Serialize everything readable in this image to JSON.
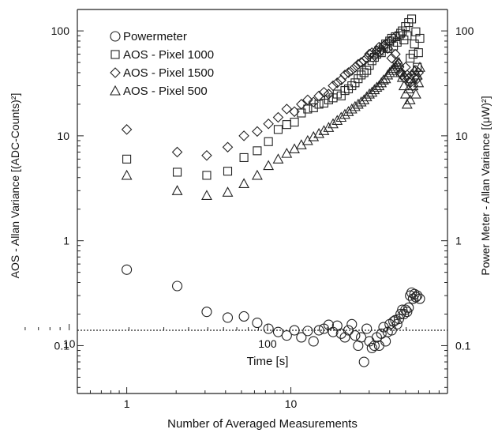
{
  "chart_data": {
    "type": "scatter",
    "title": "",
    "xlabel": "Number of Averaged Measurements",
    "x2label": "Time [s]",
    "ylabel": "AOS - Allan Variance [(ADC-Counts)²]",
    "y2label": "Power Meter - Allan Variance [(μW)²]",
    "xscale": "log",
    "yscale": "log",
    "xlim": [
      0.5,
      90
    ],
    "ylim": [
      0.035,
      160
    ],
    "xticks": [
      "1",
      "10"
    ],
    "x2ticks": [
      "10",
      "100"
    ],
    "yticks": [
      "0.1",
      "1",
      "10",
      "100"
    ],
    "y2ticks": [
      "0.1",
      "1",
      "10",
      "100"
    ],
    "legend_position": "top-left",
    "grid": false,
    "series": [
      {
        "name": "Powermeter",
        "marker": "circle",
        "points": [
          [
            1,
            0.53
          ],
          [
            2,
            0.37
          ],
          [
            3,
            0.21
          ],
          [
            4,
            0.185
          ],
          [
            5,
            0.19
          ],
          [
            6,
            0.165
          ],
          [
            7,
            0.145
          ],
          [
            8,
            0.135
          ],
          [
            9,
            0.125
          ],
          [
            10,
            0.14
          ],
          [
            11,
            0.12
          ],
          [
            12,
            0.138
          ],
          [
            13,
            0.11
          ],
          [
            14,
            0.14
          ],
          [
            15,
            0.145
          ],
          [
            16,
            0.158
          ],
          [
            17,
            0.135
          ],
          [
            18,
            0.155
          ],
          [
            19,
            0.13
          ],
          [
            20,
            0.12
          ],
          [
            21,
            0.14
          ],
          [
            22,
            0.16
          ],
          [
            23,
            0.125
          ],
          [
            24,
            0.1
          ],
          [
            25,
            0.12
          ],
          [
            26,
            0.07
          ],
          [
            27,
            0.145
          ],
          [
            28,
            0.11
          ],
          [
            29,
            0.095
          ],
          [
            30,
            0.1
          ],
          [
            31,
            0.12
          ],
          [
            32,
            0.1
          ],
          [
            33,
            0.13
          ],
          [
            34,
            0.15
          ],
          [
            35,
            0.11
          ],
          [
            36,
            0.135
          ],
          [
            37,
            0.16
          ],
          [
            38,
            0.14
          ],
          [
            39,
            0.17
          ],
          [
            40,
            0.175
          ],
          [
            41,
            0.16
          ],
          [
            42,
            0.18
          ],
          [
            43,
            0.2
          ],
          [
            44,
            0.22
          ],
          [
            45,
            0.2
          ],
          [
            46,
            0.22
          ],
          [
            47,
            0.21
          ],
          [
            48,
            0.23
          ],
          [
            49,
            0.3
          ],
          [
            50,
            0.32
          ],
          [
            51,
            0.28
          ],
          [
            52,
            0.31
          ],
          [
            53,
            0.29
          ],
          [
            54,
            0.3
          ],
          [
            56,
            0.28
          ]
        ]
      },
      {
        "name": "AOS - Pixel 1000",
        "marker": "square",
        "points": [
          [
            1,
            6.0
          ],
          [
            2,
            4.5
          ],
          [
            3,
            4.2
          ],
          [
            4,
            4.6
          ],
          [
            5,
            6.2
          ],
          [
            6,
            7.2
          ],
          [
            7,
            8.8
          ],
          [
            8,
            11.5
          ],
          [
            9,
            12.8
          ],
          [
            10,
            13.5
          ],
          [
            11,
            16.5
          ],
          [
            12,
            18
          ],
          [
            13,
            18.5
          ],
          [
            14,
            20
          ],
          [
            15,
            20.5
          ],
          [
            16,
            22
          ],
          [
            17,
            23
          ],
          [
            18,
            25
          ],
          [
            19,
            24
          ],
          [
            20,
            27
          ],
          [
            21,
            28
          ],
          [
            22,
            30
          ],
          [
            23,
            32
          ],
          [
            24,
            35
          ],
          [
            25,
            38
          ],
          [
            26,
            40
          ],
          [
            27,
            42
          ],
          [
            28,
            47
          ],
          [
            29,
            52
          ],
          [
            30,
            56
          ],
          [
            31,
            60
          ],
          [
            32,
            64
          ],
          [
            33,
            62
          ],
          [
            34,
            70
          ],
          [
            35,
            75
          ],
          [
            36,
            68
          ],
          [
            37,
            80
          ],
          [
            38,
            85
          ],
          [
            39,
            72
          ],
          [
            40,
            88
          ],
          [
            41,
            78
          ],
          [
            42,
            90
          ],
          [
            43,
            95
          ],
          [
            44,
            100
          ],
          [
            45,
            82
          ],
          [
            46,
            110
          ],
          [
            47,
            90
          ],
          [
            48,
            120
          ],
          [
            49,
            55
          ],
          [
            50,
            130
          ],
          [
            51,
            60
          ],
          [
            52,
            75
          ],
          [
            53,
            98
          ],
          [
            54,
            45
          ],
          [
            55,
            62
          ],
          [
            56,
            85
          ]
        ]
      },
      {
        "name": "AOS - Pixel 1500",
        "marker": "diamond",
        "points": [
          [
            1,
            11.5
          ],
          [
            2,
            7.0
          ],
          [
            3,
            6.5
          ],
          [
            4,
            7.8
          ],
          [
            5,
            10
          ],
          [
            6,
            11
          ],
          [
            7,
            13
          ],
          [
            8,
            15
          ],
          [
            9,
            18
          ],
          [
            10,
            17
          ],
          [
            11,
            20
          ],
          [
            12,
            22
          ],
          [
            13,
            21
          ],
          [
            14,
            24
          ],
          [
            15,
            26
          ],
          [
            16,
            25
          ],
          [
            17,
            30
          ],
          [
            18,
            32
          ],
          [
            19,
            34
          ],
          [
            20,
            38
          ],
          [
            21,
            40
          ],
          [
            22,
            42
          ],
          [
            23,
            45
          ],
          [
            24,
            48
          ],
          [
            25,
            50
          ],
          [
            26,
            52
          ],
          [
            27,
            55
          ],
          [
            28,
            60
          ],
          [
            29,
            62
          ],
          [
            30,
            58
          ],
          [
            31,
            65
          ],
          [
            32,
            70
          ],
          [
            33,
            66
          ],
          [
            34,
            72
          ],
          [
            35,
            75
          ],
          [
            36,
            68
          ],
          [
            37,
            80
          ],
          [
            38,
            55
          ],
          [
            39,
            85
          ],
          [
            40,
            60
          ],
          [
            41,
            50
          ],
          [
            42,
            45
          ],
          [
            43,
            40
          ],
          [
            44,
            38
          ],
          [
            45,
            36
          ],
          [
            46,
            45
          ],
          [
            47,
            38
          ],
          [
            48,
            35
          ],
          [
            49,
            32
          ],
          [
            50,
            38
          ],
          [
            51,
            30
          ],
          [
            52,
            36
          ],
          [
            53,
            42
          ],
          [
            54,
            35
          ],
          [
            55,
            40
          ]
        ]
      },
      {
        "name": "AOS - Pixel 500",
        "marker": "triangle",
        "points": [
          [
            1,
            4.2
          ],
          [
            2,
            3.0
          ],
          [
            3,
            2.7
          ],
          [
            4,
            2.9
          ],
          [
            5,
            3.5
          ],
          [
            6,
            4.2
          ],
          [
            7,
            5.2
          ],
          [
            8,
            6.0
          ],
          [
            9,
            6.8
          ],
          [
            10,
            7.5
          ],
          [
            11,
            8.2
          ],
          [
            12,
            9.0
          ],
          [
            13,
            9.8
          ],
          [
            14,
            10.5
          ],
          [
            15,
            11.2
          ],
          [
            16,
            12
          ],
          [
            17,
            13
          ],
          [
            18,
            14
          ],
          [
            19,
            15
          ],
          [
            20,
            16
          ],
          [
            21,
            17
          ],
          [
            22,
            18
          ],
          [
            23,
            19
          ],
          [
            24,
            20
          ],
          [
            25,
            21
          ],
          [
            26,
            22
          ],
          [
            27,
            23.5
          ],
          [
            28,
            25
          ],
          [
            29,
            26
          ],
          [
            30,
            27.5
          ],
          [
            31,
            29
          ],
          [
            32,
            30
          ],
          [
            33,
            32
          ],
          [
            34,
            34
          ],
          [
            35,
            35
          ],
          [
            36,
            38
          ],
          [
            37,
            40
          ],
          [
            38,
            42
          ],
          [
            39,
            44
          ],
          [
            40,
            46
          ],
          [
            41,
            48
          ],
          [
            42,
            50
          ],
          [
            43,
            40
          ],
          [
            44,
            36
          ],
          [
            45,
            30
          ],
          [
            46,
            25
          ],
          [
            47,
            20
          ],
          [
            48,
            28
          ],
          [
            49,
            22
          ],
          [
            50,
            35
          ],
          [
            51,
            30
          ],
          [
            52,
            42
          ],
          [
            53,
            25
          ],
          [
            54,
            38
          ],
          [
            55,
            32
          ],
          [
            56,
            45
          ]
        ]
      }
    ]
  }
}
